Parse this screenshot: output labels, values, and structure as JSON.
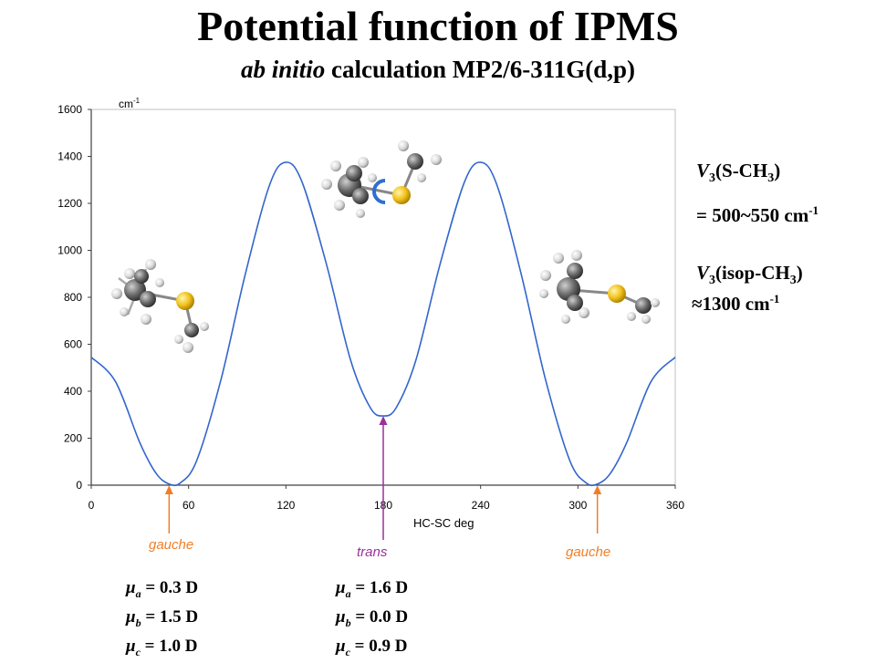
{
  "header": {
    "title": "Potential function of IPMS",
    "subtitle_italic": "ab initio",
    "subtitle_rest": " calculation MP2/6-311G(d,p)"
  },
  "chart_data": {
    "type": "line",
    "title": "",
    "xlabel": "HC-SC deg",
    "ylabel": "cm-1",
    "xlim": [
      0,
      360
    ],
    "ylim": [
      0,
      1600
    ],
    "x_ticks": [
      0,
      60,
      120,
      180,
      240,
      300,
      360
    ],
    "y_ticks": [
      0,
      200,
      400,
      600,
      800,
      1000,
      1200,
      1400,
      1600
    ],
    "grid": false,
    "series": [
      {
        "color": "#3366cc",
        "x": [
          0,
          15,
          30,
          40,
          48,
          55,
          65,
          80,
          95,
          110,
          120,
          130,
          145,
          160,
          172,
          180,
          188,
          200,
          215,
          230,
          240,
          250,
          265,
          280,
          295,
          305,
          312,
          320,
          330,
          345,
          360
        ],
        "y": [
          545,
          440,
          180,
          50,
          5,
          10,
          105,
          450,
          900,
          1280,
          1375,
          1290,
          940,
          530,
          330,
          295,
          330,
          530,
          940,
          1290,
          1375,
          1280,
          900,
          450,
          105,
          10,
          5,
          50,
          180,
          440,
          545
        ]
      }
    ],
    "annotations": [
      {
        "label": "gauche",
        "x": 48,
        "y": 0,
        "color": "#f07e26"
      },
      {
        "label": "trans",
        "x": 180,
        "y": 295,
        "color": "#9b2f9b"
      },
      {
        "label": "gauche",
        "x": 312,
        "y": 0,
        "color": "#f07e26"
      }
    ]
  },
  "barriers": {
    "v3_sch3_label": "V",
    "v3_sch3_sub": "3",
    "v3_sch3_group": "(S-CH",
    "v3_sch3_group_sub": "3",
    "v3_sch3_close": ")",
    "v3_sch3_value": "= 500~550 cm",
    "v3_sch3_value_sup": "-1",
    "v3_isop_label": "V",
    "v3_isop_sub": "3",
    "v3_isop_group": "(isop-CH",
    "v3_isop_group_sub": "3",
    "v3_isop_close": ")",
    "v3_isop_value": "≈1300 cm",
    "v3_isop_value_sup": "-1"
  },
  "dipoles": {
    "gauche": [
      {
        "mu": "μ",
        "sub": "a",
        "value": " = 0.3 D"
      },
      {
        "mu": "μ",
        "sub": "b",
        "value": " = 1.5 D"
      },
      {
        "mu": "μ",
        "sub": "c",
        "value": " = 1.0 D"
      }
    ],
    "trans": [
      {
        "mu": "μ",
        "sub": "a",
        "value": " = 1.6 D"
      },
      {
        "mu": "μ",
        "sub": "b",
        "value": " = 0.0 D"
      },
      {
        "mu": "μ",
        "sub": "c",
        "value": " = 0.9 D"
      }
    ]
  },
  "colors": {
    "curve": "#3366cc",
    "gauche": "#f07e26",
    "trans": "#9b2f9b",
    "sulfur": "#f2c21b",
    "carbon": "#6b6b6b",
    "hydrogen": "#d9d9d9"
  }
}
